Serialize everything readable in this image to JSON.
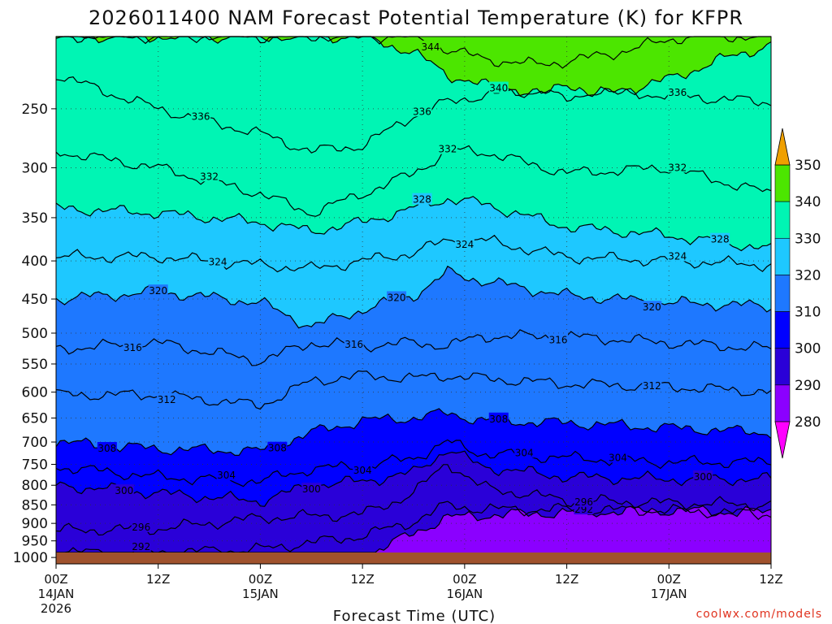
{
  "title": "2026011400 NAM Forecast Potential Temperature (K) for KFPR",
  "credit": "coolwx.com/models",
  "colors": {
    "ground": "#a0522d",
    "levels": [
      "#ff00ff",
      "#8b00ff",
      "#2a00d8",
      "#0000ff",
      "#1e78ff",
      "#1ec8ff",
      "#00f5b4",
      "#4ce600",
      "#f4f400",
      "#f0a000"
    ]
  },
  "chart_data": {
    "type": "heatmap",
    "title": "2026011400 NAM Forecast Potential Temperature (K) for KFPR",
    "xlabel": "Forecast Time (UTC)",
    "ylabel": "",
    "x_unit": "forecast hour",
    "xlim": [
      0,
      84
    ],
    "y_unit": "hPa",
    "y_scale": "log",
    "ylim": [
      1020,
      200
    ],
    "x_ticks": [
      {
        "h": 0,
        "label": "00Z",
        "sub1": "14JAN",
        "sub2": "2026"
      },
      {
        "h": 12,
        "label": "12Z",
        "sub1": "",
        "sub2": ""
      },
      {
        "h": 24,
        "label": "00Z",
        "sub1": "15JAN",
        "sub2": ""
      },
      {
        "h": 36,
        "label": "12Z",
        "sub1": "",
        "sub2": ""
      },
      {
        "h": 48,
        "label": "00Z",
        "sub1": "16JAN",
        "sub2": ""
      },
      {
        "h": 60,
        "label": "12Z",
        "sub1": "",
        "sub2": ""
      },
      {
        "h": 72,
        "label": "00Z",
        "sub1": "17JAN",
        "sub2": ""
      },
      {
        "h": 84,
        "label": "12Z",
        "sub1": "",
        "sub2": ""
      }
    ],
    "y_ticks": [
      250,
      300,
      350,
      400,
      450,
      500,
      550,
      600,
      650,
      700,
      750,
      800,
      850,
      900,
      950,
      1000
    ],
    "colorbar": {
      "levels": [
        280,
        290,
        300,
        310,
        320,
        330,
        340,
        350
      ],
      "tick_labels": [
        "280",
        "290",
        "300",
        "310",
        "320",
        "330",
        "340",
        "350"
      ],
      "extend": "both"
    },
    "grid": true,
    "isentropes": [
      {
        "theta": 288,
        "label": "288",
        "pressure_by_hour": [
          [
            0,
            1005
          ],
          [
            12,
            1005
          ],
          [
            24,
            1005
          ],
          [
            36,
            1005
          ],
          [
            42,
            925
          ],
          [
            46,
            885
          ],
          [
            50,
            878
          ],
          [
            60,
            870
          ],
          [
            72,
            865
          ],
          [
            84,
            870
          ]
        ]
      },
      {
        "theta": 292,
        "label": "292",
        "pressure_by_hour": [
          [
            0,
            985
          ],
          [
            12,
            985
          ],
          [
            24,
            975
          ],
          [
            36,
            935
          ],
          [
            42,
            895
          ],
          [
            46,
            850
          ],
          [
            50,
            862
          ],
          [
            60,
            862
          ],
          [
            72,
            865
          ],
          [
            84,
            875
          ]
        ]
      },
      {
        "theta": 296,
        "label": "296",
        "pressure_by_hour": [
          [
            0,
            920
          ],
          [
            12,
            915
          ],
          [
            24,
            885
          ],
          [
            36,
            875
          ],
          [
            42,
            820
          ],
          [
            46,
            745
          ],
          [
            50,
            805
          ],
          [
            60,
            838
          ],
          [
            72,
            845
          ],
          [
            84,
            850
          ]
        ]
      },
      {
        "theta": 300,
        "label": "300",
        "pressure_by_hour": [
          [
            0,
            800
          ],
          [
            12,
            820
          ],
          [
            24,
            840
          ],
          [
            30,
            800
          ],
          [
            36,
            790
          ],
          [
            42,
            770
          ],
          [
            46,
            715
          ],
          [
            50,
            755
          ],
          [
            60,
            780
          ],
          [
            72,
            785
          ],
          [
            84,
            785
          ]
        ]
      },
      {
        "theta": 304,
        "label": "304",
        "pressure_by_hour": [
          [
            0,
            755
          ],
          [
            12,
            780
          ],
          [
            24,
            790
          ],
          [
            30,
            760
          ],
          [
            36,
            755
          ],
          [
            42,
            735
          ],
          [
            46,
            700
          ],
          [
            50,
            725
          ],
          [
            60,
            735
          ],
          [
            72,
            745
          ],
          [
            84,
            745
          ]
        ]
      },
      {
        "theta": 308,
        "label": "308",
        "pressure_by_hour": [
          [
            0,
            700
          ],
          [
            12,
            715
          ],
          [
            24,
            720
          ],
          [
            30,
            680
          ],
          [
            36,
            655
          ],
          [
            42,
            650
          ],
          [
            46,
            640
          ],
          [
            50,
            655
          ],
          [
            60,
            660
          ],
          [
            72,
            670
          ],
          [
            84,
            680
          ]
        ]
      },
      {
        "theta": 312,
        "label": "312",
        "pressure_by_hour": [
          [
            0,
            605
          ],
          [
            12,
            605
          ],
          [
            24,
            625
          ],
          [
            30,
            580
          ],
          [
            36,
            570
          ],
          [
            42,
            575
          ],
          [
            46,
            570
          ],
          [
            50,
            575
          ],
          [
            60,
            585
          ],
          [
            72,
            590
          ],
          [
            84,
            600
          ]
        ]
      },
      {
        "theta": 316,
        "label": "316",
        "pressure_by_hour": [
          [
            0,
            525
          ],
          [
            12,
            515
          ],
          [
            24,
            545
          ],
          [
            30,
            515
          ],
          [
            36,
            520
          ],
          [
            42,
            515
          ],
          [
            46,
            520
          ],
          [
            50,
            505
          ],
          [
            60,
            505
          ],
          [
            72,
            515
          ],
          [
            84,
            525
          ]
        ]
      },
      {
        "theta": 320,
        "label": "320",
        "pressure_by_hour": [
          [
            0,
            450
          ],
          [
            12,
            440
          ],
          [
            24,
            455
          ],
          [
            30,
            490
          ],
          [
            36,
            465
          ],
          [
            42,
            445
          ],
          [
            46,
            415
          ],
          [
            50,
            425
          ],
          [
            60,
            445
          ],
          [
            72,
            455
          ],
          [
            84,
            460
          ]
        ]
      },
      {
        "theta": 324,
        "label": "324",
        "pressure_by_hour": [
          [
            0,
            395
          ],
          [
            12,
            395
          ],
          [
            24,
            405
          ],
          [
            30,
            410
          ],
          [
            36,
            400
          ],
          [
            42,
            390
          ],
          [
            46,
            375
          ],
          [
            50,
            375
          ],
          [
            60,
            395
          ],
          [
            72,
            400
          ],
          [
            84,
            405
          ]
        ]
      },
      {
        "theta": 328,
        "label": "328",
        "pressure_by_hour": [
          [
            0,
            340
          ],
          [
            12,
            345
          ],
          [
            24,
            355
          ],
          [
            30,
            365
          ],
          [
            36,
            355
          ],
          [
            42,
            340
          ],
          [
            46,
            330
          ],
          [
            50,
            335
          ],
          [
            60,
            360
          ],
          [
            72,
            370
          ],
          [
            84,
            385
          ]
        ]
      },
      {
        "theta": 332,
        "label": "332",
        "pressure_by_hour": [
          [
            0,
            285
          ],
          [
            12,
            300
          ],
          [
            24,
            325
          ],
          [
            30,
            345
          ],
          [
            36,
            325
          ],
          [
            42,
            305
          ],
          [
            46,
            285
          ],
          [
            50,
            285
          ],
          [
            60,
            305
          ],
          [
            72,
            300
          ],
          [
            84,
            325
          ]
        ]
      },
      {
        "theta": 336,
        "label": "336",
        "pressure_by_hour": [
          [
            0,
            225
          ],
          [
            12,
            250
          ],
          [
            24,
            270
          ],
          [
            30,
            285
          ],
          [
            36,
            280
          ],
          [
            42,
            255
          ],
          [
            46,
            245
          ],
          [
            50,
            240
          ],
          [
            60,
            235
          ],
          [
            72,
            240
          ],
          [
            84,
            245
          ]
        ]
      },
      {
        "theta": 340,
        "label": "340",
        "pressure_by_hour": [
          [
            0,
            200
          ],
          [
            24,
            200
          ],
          [
            36,
            200
          ],
          [
            42,
            210
          ],
          [
            46,
            225
          ],
          [
            50,
            232
          ],
          [
            56,
            238
          ],
          [
            60,
            240
          ],
          [
            66,
            238
          ],
          [
            72,
            228
          ],
          [
            78,
            215
          ],
          [
            84,
            205
          ]
        ]
      },
      {
        "theta": 344,
        "label": "344",
        "pressure_by_hour": [
          [
            42,
            200
          ],
          [
            46,
            208
          ],
          [
            50,
            214
          ],
          [
            56,
            218
          ],
          [
            60,
            216
          ],
          [
            66,
            210
          ],
          [
            72,
            202
          ],
          [
            74,
            200
          ]
        ]
      }
    ]
  }
}
